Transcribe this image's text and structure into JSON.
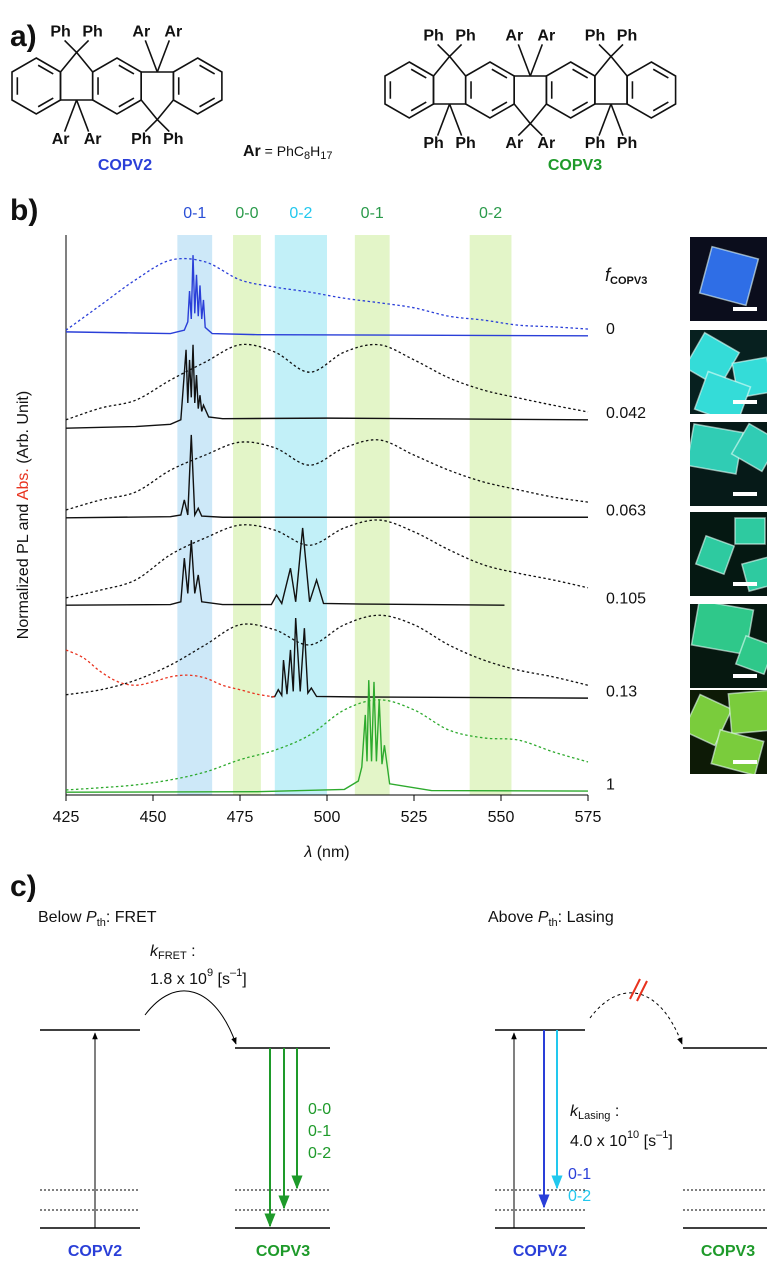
{
  "panel_a": {
    "label": "a)",
    "copv2": {
      "name": "COPV2",
      "top": [
        "Ph",
        "Ph",
        "Ar",
        "Ar"
      ],
      "bottom": [
        "Ar",
        "Ar",
        "Ph",
        "Ph"
      ]
    },
    "ar_def": {
      "symbol": "Ar",
      "text": " = PhC",
      "sub1": "8",
      "h": "H",
      "sub2": "17"
    },
    "copv3": {
      "name": "COPV3",
      "top": [
        "Ph",
        "Ph",
        "Ar",
        "Ar",
        "Ph",
        "Ph"
      ],
      "bottom": [
        "Ph",
        "Ph",
        "Ar",
        "Ar",
        "Ph",
        "Ph"
      ]
    }
  },
  "chart_data": {
    "type": "line",
    "panel_label": "b)",
    "xlabel": {
      "symbol": "λ",
      "unit": " (nm)"
    },
    "ylabel": {
      "pre": "Normalized PL and ",
      "abs": "Abs.",
      "post": " (Arb. Unit)"
    },
    "xlim": [
      425,
      575
    ],
    "xticks": [
      425,
      450,
      475,
      500,
      525,
      550,
      575
    ],
    "ylim": [
      0,
      10
    ],
    "bands": [
      {
        "label": "0-1",
        "color": "#2a4fd6",
        "fill": "#cde8f8",
        "range": [
          457,
          467
        ]
      },
      {
        "label": "0-0",
        "color": "#2a9a4a",
        "fill": "#e3f5c8",
        "range": [
          473,
          481
        ]
      },
      {
        "label": "0-2",
        "color": "#22c8ee",
        "fill": "#c2f0f8",
        "range": [
          485,
          500
        ]
      },
      {
        "label": "0-1",
        "color": "#2a9a4a",
        "fill": "#e3f5c8",
        "range": [
          508,
          518
        ]
      },
      {
        "label": "0-2",
        "color": "#2a9a4a",
        "fill": "#e3f5c8",
        "range": [
          541,
          553
        ]
      }
    ],
    "legend_title": {
      "symbol": "f",
      "sub": "COPV3"
    },
    "abs_x": [
      425,
      435,
      445,
      455,
      465,
      475,
      485,
      495,
      505,
      515,
      525,
      535,
      545,
      555,
      565,
      575
    ],
    "traces": [
      {
        "f": 0,
        "color": "#2a3fd8",
        "abs": [
          8.3,
          8.75,
          9.2,
          9.55,
          9.52,
          9.2,
          9.07,
          8.98,
          8.87,
          8.79,
          8.7,
          8.55,
          8.48,
          8.39,
          8.36,
          8.32
        ],
        "pl": {
          "x": [
            425,
            445,
            455,
            459,
            460,
            460.5,
            461,
            461.5,
            462,
            462.5,
            463,
            463.5,
            464,
            464.5,
            465,
            467,
            480,
            575
          ],
          "values": [
            8.27,
            8.25,
            8.24,
            8.3,
            8.45,
            9.0,
            8.5,
            9.64,
            8.6,
            9.29,
            8.55,
            9.1,
            8.5,
            8.84,
            8.35,
            8.24,
            8.22,
            8.2
          ]
        }
      },
      {
        "f": 0.042,
        "color": "#111111",
        "abs": [
          6.7,
          6.91,
          7.05,
          7.41,
          7.73,
          8.04,
          7.91,
          7.55,
          7.91,
          8.04,
          7.77,
          7.45,
          7.23,
          7.09,
          6.96,
          6.84
        ],
        "pl": {
          "x": [
            425,
            445,
            455,
            458,
            459.5,
            460,
            460.5,
            461,
            461.5,
            462,
            462.5,
            463,
            463.5,
            464,
            464.5,
            466,
            470,
            500,
            575
          ],
          "values": [
            6.55,
            6.58,
            6.62,
            6.7,
            7.95,
            7.0,
            7.77,
            7.1,
            8.04,
            7.0,
            7.5,
            6.9,
            7.14,
            6.85,
            6.96,
            6.75,
            6.72,
            6.73,
            6.7
          ]
        }
      },
      {
        "f": 0.063,
        "color": "#111111",
        "abs": [
          5.09,
          5.27,
          5.41,
          5.8,
          6.07,
          6.3,
          6.2,
          5.89,
          6.2,
          6.34,
          6.07,
          5.8,
          5.59,
          5.45,
          5.32,
          5.23
        ],
        "pl": {
          "x": [
            425,
            455,
            458,
            459,
            460,
            461,
            462,
            463,
            464,
            470,
            575
          ],
          "values": [
            4.95,
            4.97,
            5.0,
            5.27,
            5.0,
            6.43,
            5.0,
            5.12,
            4.98,
            4.96,
            4.96
          ]
        }
      },
      {
        "f": 0.105,
        "color": "#111111",
        "abs": [
          3.52,
          3.66,
          3.84,
          4.29,
          4.59,
          4.82,
          4.73,
          4.46,
          4.77,
          4.91,
          4.7,
          4.38,
          4.11,
          3.96,
          3.84,
          3.7
        ],
        "pl": {
          "x": [
            425,
            455,
            458,
            459,
            460,
            461,
            462,
            463,
            464,
            470,
            484,
            485.5,
            487,
            489.5,
            491,
            493,
            495,
            497,
            499,
            510,
            551
          ],
          "values": [
            3.39,
            3.4,
            3.45,
            4.23,
            3.6,
            4.55,
            3.6,
            3.93,
            3.45,
            3.4,
            3.4,
            3.57,
            3.42,
            4.05,
            3.45,
            4.77,
            3.45,
            3.84,
            3.42,
            3.41,
            3.39
          ]
        }
      },
      {
        "f": 0.13,
        "color": "#111111",
        "abs": [
          1.79,
          1.88,
          2.05,
          2.32,
          2.68,
          3.04,
          2.95,
          2.68,
          3.04,
          3.21,
          3.04,
          2.68,
          2.41,
          2.23,
          2.11,
          1.96
        ],
        "pl": {
          "x": [
            484,
            485,
            486,
            487,
            487.5,
            488.5,
            489.5,
            490.3,
            491,
            492.3,
            493.5,
            494.5,
            495.5,
            497,
            510,
            575
          ],
          "values": [
            1.75,
            1.76,
            1.88,
            1.78,
            2.41,
            1.8,
            2.59,
            1.85,
            3.16,
            1.85,
            2.98,
            1.82,
            1.91,
            1.76,
            1.75,
            1.73
          ]
        }
      },
      {
        "f": 1,
        "color": "#2eaa2e",
        "abs": [
          0.09,
          0.13,
          0.18,
          0.27,
          0.41,
          0.63,
          0.8,
          1.07,
          1.52,
          1.7,
          1.52,
          1.16,
          1.02,
          0.98,
          0.77,
          0.59
        ],
        "pl": {
          "x": [
            425,
            480,
            505,
            509,
            510,
            511,
            511.5,
            512,
            512.8,
            513.5,
            514.2,
            515,
            515.8,
            516.5,
            518,
            530,
            575
          ],
          "values": [
            0.05,
            0.06,
            0.1,
            0.25,
            0.5,
            1.43,
            0.6,
            2.05,
            0.6,
            2.02,
            0.6,
            1.7,
            0.55,
            0.89,
            0.2,
            0.08,
            0.07
          ]
        }
      }
    ],
    "extra_abs": {
      "color": "#e8321e",
      "x": [
        425,
        430,
        435,
        440,
        445,
        450,
        455,
        460,
        465,
        470,
        475,
        480,
        485
      ],
      "values": [
        2.59,
        2.45,
        2.2,
        2.02,
        1.96,
        2.02,
        2.11,
        2.14,
        2.09,
        1.96,
        1.88,
        1.8,
        1.75
      ]
    }
  },
  "panel_c": {
    "label": "c)",
    "left": {
      "title": {
        "pre": "Below ",
        "p": "P",
        "sub": "th",
        "post": ": FRET"
      },
      "rate": {
        "k": "k",
        "sub": "FRET",
        "colon": " :",
        "value": "1.8 x 10",
        "exp": "9",
        "unit": " [s",
        "unit_exp": "–1",
        "unit_end": "]"
      },
      "transitions": [
        "0-0",
        "0-1",
        "0-2"
      ],
      "donor": "COPV2",
      "acceptor": "COPV3"
    },
    "right": {
      "title": {
        "pre": "Above ",
        "p": "P",
        "sub": "th",
        "post": ": Lasing"
      },
      "rate": {
        "k": "k",
        "sub": "Lasing",
        "colon": " :",
        "value": "4.0 x 10",
        "exp": "10",
        "unit": " [s",
        "unit_exp": "–1",
        "unit_end": "]"
      },
      "transitions": [
        "0-1",
        "0-2"
      ],
      "donor": "COPV2",
      "acceptor": "COPV3"
    }
  }
}
